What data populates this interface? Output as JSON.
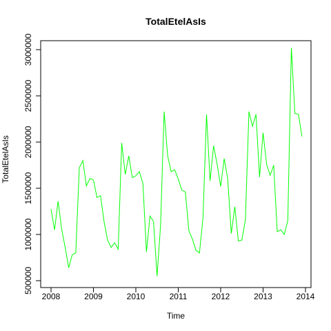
{
  "chart_data": {
    "type": "line",
    "title": "TotalEtelAsIs",
    "xlabel": "Time",
    "ylabel": "TotalEtelAsIs",
    "xlim": [
      2008,
      2014
    ],
    "ylim": [
      500000,
      3000000
    ],
    "xticks": [
      2008,
      2009,
      2010,
      2011,
      2012,
      2013,
      2014
    ],
    "xtick_labels": [
      "2008",
      "2009",
      "2010",
      "2011",
      "2012",
      "2013",
      "2014"
    ],
    "yticks": [
      500000,
      1000000,
      1500000,
      2000000,
      2500000,
      3000000
    ],
    "ytick_labels": [
      "500000",
      "1000000",
      "1500000",
      "2000000",
      "2500000",
      "3000000"
    ],
    "grid": false,
    "line_color": "#00ff00",
    "series": [
      {
        "x_start": 2008,
        "frequency": 12,
        "values": [
          1275000,
          1050000,
          1360000,
          1060000,
          860000,
          640000,
          780000,
          800000,
          1720000,
          1800000,
          1525000,
          1605000,
          1590000,
          1400000,
          1420000,
          1140000,
          940000,
          860000,
          910000,
          840000,
          1990000,
          1650000,
          1850000,
          1615000,
          1635000,
          1680000,
          1550000,
          810000,
          1200000,
          1140000,
          550000,
          1100000,
          2330000,
          1850000,
          1680000,
          1700000,
          1600000,
          1480000,
          1460000,
          1040000,
          950000,
          830000,
          800000,
          1180000,
          2300000,
          1580000,
          1960000,
          1760000,
          1520000,
          1820000,
          1600000,
          1010000,
          1300000,
          930000,
          940000,
          1160000,
          2330000,
          2170000,
          2300000,
          1620000,
          2100000,
          1760000,
          1640000,
          1750000,
          1030000,
          1050000,
          1000000,
          1150000,
          3020000,
          2310000,
          2300000,
          2060000
        ]
      }
    ]
  }
}
